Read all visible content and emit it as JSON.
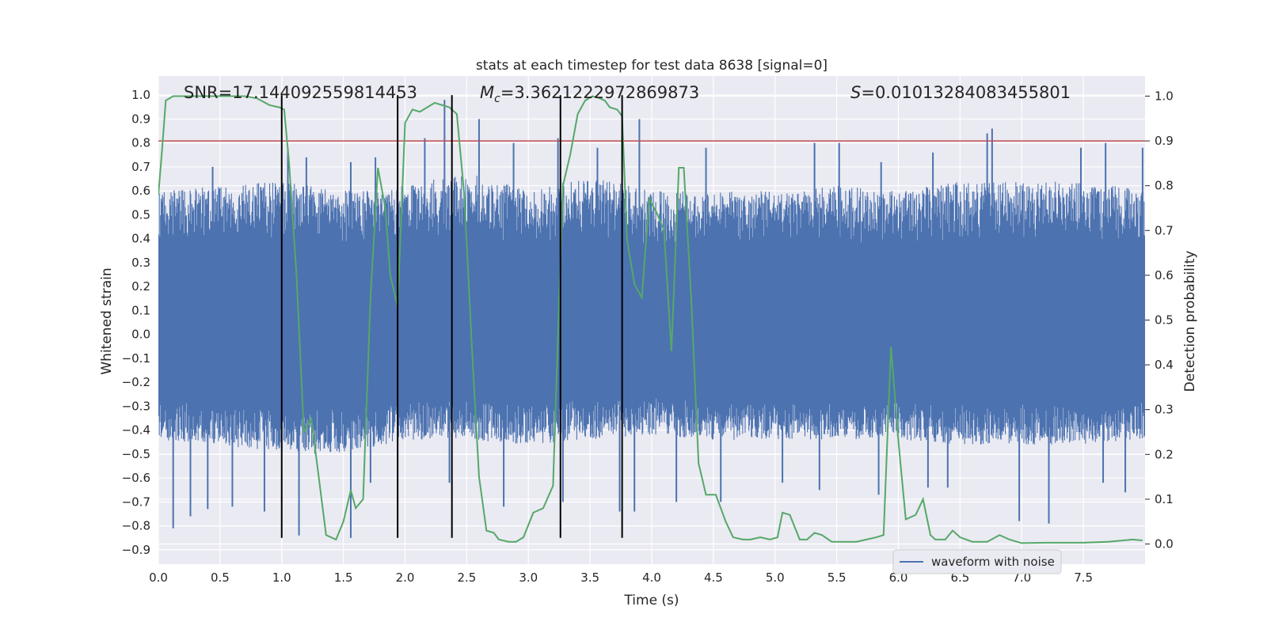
{
  "chart_data": {
    "type": "line",
    "title": "stats at each timestep for test data 8638 [signal=0]",
    "xlabel": "Time (s)",
    "ylabel_left": "Whitened strain",
    "ylabel_right": "Detection probability",
    "xlim": [
      0.0,
      8.0
    ],
    "ylim_left": [
      -0.96,
      1.08
    ],
    "ylim_right": [
      -0.045,
      1.045
    ],
    "x_ticks": [
      "0.0",
      "0.5",
      "1.0",
      "1.5",
      "2.0",
      "2.5",
      "3.0",
      "3.5",
      "4.0",
      "4.5",
      "5.0",
      "5.5",
      "6.0",
      "6.5",
      "7.0",
      "7.5"
    ],
    "y_ticks_left": [
      "1.0",
      "0.9",
      "0.8",
      "0.7",
      "0.6",
      "0.5",
      "0.4",
      "0.3",
      "0.2",
      "0.1",
      "0.0",
      "-0.1",
      "-0.2",
      "-0.3",
      "-0.4",
      "-0.5",
      "-0.6",
      "-0.7",
      "-0.8",
      "-0.9"
    ],
    "y_ticks_right": [
      "1.0",
      "0.9",
      "0.8",
      "0.7",
      "0.6",
      "0.5",
      "0.4",
      "0.3",
      "0.2",
      "0.1",
      "0.0"
    ],
    "annotations": {
      "snr": "SNR=17.144092559814453",
      "mc_prefix": "M",
      "mc_sub": "c",
      "mc_value": "=3.3621222972869873",
      "s_prefix": "S",
      "s_value": "=0.010132840834558​01"
    },
    "threshold": {
      "value": 0.9,
      "axis": "right",
      "color": "#c44e52"
    },
    "event_lines_x": [
      1.0,
      1.94,
      2.38,
      3.26,
      3.76
    ],
    "event_line_ymin": -0.85,
    "colors": {
      "background": "#eaeaf2",
      "grid": "#ffffff",
      "waveform": "#4c72b0",
      "probability": "#55a868",
      "event_line": "#000000"
    },
    "series": [
      {
        "name": "waveform with noise",
        "axis": "left",
        "envelope_x": [
          0.0,
          0.5,
          1.0,
          1.5,
          2.0,
          2.5,
          3.0,
          3.5,
          4.0,
          4.5,
          5.0,
          5.5,
          6.0,
          6.5,
          7.0,
          7.5,
          8.0
        ],
        "envelope_upper": [
          0.6,
          0.62,
          0.64,
          0.6,
          0.62,
          0.68,
          0.6,
          0.66,
          0.6,
          0.6,
          0.6,
          0.62,
          0.6,
          0.64,
          0.64,
          0.64,
          0.6
        ],
        "envelope_lower": [
          -0.44,
          -0.46,
          -0.5,
          -0.5,
          -0.44,
          -0.44,
          -0.46,
          -0.44,
          -0.42,
          -0.44,
          -0.44,
          -0.44,
          -0.44,
          -0.46,
          -0.46,
          -0.46,
          -0.44
        ],
        "spikes_up": [
          [
            0.44,
            0.7
          ],
          [
            1.05,
            0.78
          ],
          [
            1.2,
            0.74
          ],
          [
            1.56,
            0.72
          ],
          [
            1.76,
            0.74
          ],
          [
            2.16,
            0.82
          ],
          [
            2.32,
            0.98
          ],
          [
            2.6,
            0.9
          ],
          [
            2.88,
            0.8
          ],
          [
            3.24,
            0.82
          ],
          [
            3.56,
            0.78
          ],
          [
            3.9,
            0.9
          ],
          [
            4.44,
            0.78
          ],
          [
            5.32,
            0.8
          ],
          [
            5.52,
            0.8
          ],
          [
            5.86,
            0.72
          ],
          [
            6.28,
            0.76
          ],
          [
            6.72,
            0.84
          ],
          [
            6.76,
            0.86
          ],
          [
            7.48,
            0.78
          ],
          [
            7.68,
            0.8
          ],
          [
            7.98,
            0.78
          ]
        ],
        "spikes_down": [
          [
            0.12,
            -0.81
          ],
          [
            0.26,
            -0.76
          ],
          [
            0.4,
            -0.73
          ],
          [
            0.6,
            -0.72
          ],
          [
            0.86,
            -0.74
          ],
          [
            1.14,
            -0.84
          ],
          [
            1.56,
            -0.85
          ],
          [
            1.72,
            -0.62
          ],
          [
            2.36,
            -0.62
          ],
          [
            2.8,
            -0.72
          ],
          [
            3.28,
            -0.7
          ],
          [
            3.74,
            -0.74
          ],
          [
            3.86,
            -0.74
          ],
          [
            4.2,
            -0.7
          ],
          [
            4.56,
            -0.7
          ],
          [
            5.06,
            -0.62
          ],
          [
            5.36,
            -0.65
          ],
          [
            5.84,
            -0.67
          ],
          [
            6.24,
            -0.64
          ],
          [
            6.4,
            -0.64
          ],
          [
            6.98,
            -0.78
          ],
          [
            7.22,
            -0.79
          ],
          [
            7.66,
            -0.62
          ],
          [
            7.84,
            -0.66
          ]
        ]
      },
      {
        "name": "detection probability",
        "axis": "right",
        "x": [
          0.0,
          0.03,
          0.06,
          0.12,
          0.2,
          0.3,
          0.5,
          0.7,
          0.8,
          0.9,
          0.98,
          1.02,
          1.06,
          1.12,
          1.18,
          1.24,
          1.3,
          1.36,
          1.44,
          1.5,
          1.56,
          1.6,
          1.66,
          1.72,
          1.78,
          1.84,
          1.88,
          1.94,
          2.0,
          2.06,
          2.12,
          2.18,
          2.24,
          2.3,
          2.36,
          2.42,
          2.48,
          2.54,
          2.6,
          2.66,
          2.72,
          2.76,
          2.84,
          2.9,
          2.96,
          3.04,
          3.12,
          3.2,
          3.28,
          3.34,
          3.4,
          3.46,
          3.52,
          3.58,
          3.62,
          3.66,
          3.72,
          3.76,
          3.8,
          3.86,
          3.92,
          3.98,
          4.04,
          4.1,
          4.16,
          4.22,
          4.26,
          4.32,
          4.38,
          4.44,
          4.52,
          4.6,
          4.66,
          4.74,
          4.8,
          4.88,
          4.96,
          5.02,
          5.06,
          5.12,
          5.2,
          5.26,
          5.32,
          5.38,
          5.46,
          5.56,
          5.66,
          5.74,
          5.82,
          5.88,
          5.94,
          6.0,
          6.06,
          6.14,
          6.2,
          6.26,
          6.3,
          6.38,
          6.44,
          6.5,
          6.6,
          6.72,
          6.82,
          6.9,
          7.0,
          7.2,
          7.5,
          7.7,
          7.9,
          7.98
        ],
        "y": [
          0.78,
          0.88,
          0.99,
          1.0,
          1.0,
          1.0,
          1.0,
          1.0,
          0.995,
          0.98,
          0.975,
          0.97,
          0.85,
          0.6,
          0.25,
          0.28,
          0.15,
          0.02,
          0.01,
          0.05,
          0.12,
          0.08,
          0.1,
          0.55,
          0.84,
          0.75,
          0.6,
          0.53,
          0.94,
          0.97,
          0.965,
          0.975,
          0.985,
          0.98,
          0.975,
          0.96,
          0.78,
          0.45,
          0.15,
          0.03,
          0.025,
          0.01,
          0.005,
          0.005,
          0.015,
          0.07,
          0.08,
          0.13,
          0.8,
          0.87,
          0.96,
          0.99,
          1.0,
          0.995,
          0.99,
          0.975,
          0.97,
          0.955,
          0.68,
          0.58,
          0.55,
          0.77,
          0.74,
          0.7,
          0.43,
          0.84,
          0.84,
          0.55,
          0.18,
          0.11,
          0.11,
          0.05,
          0.015,
          0.01,
          0.01,
          0.015,
          0.01,
          0.015,
          0.07,
          0.065,
          0.01,
          0.01,
          0.025,
          0.02,
          0.005,
          0.005,
          0.005,
          0.01,
          0.015,
          0.02,
          0.44,
          0.23,
          0.055,
          0.065,
          0.1,
          0.02,
          0.01,
          0.01,
          0.03,
          0.015,
          0.005,
          0.005,
          0.02,
          0.01,
          0.002,
          0.003,
          0.003,
          0.005,
          0.01,
          0.008
        ]
      }
    ],
    "legend": {
      "position": "bottom-center",
      "entries": [
        "waveform with noise"
      ]
    }
  }
}
